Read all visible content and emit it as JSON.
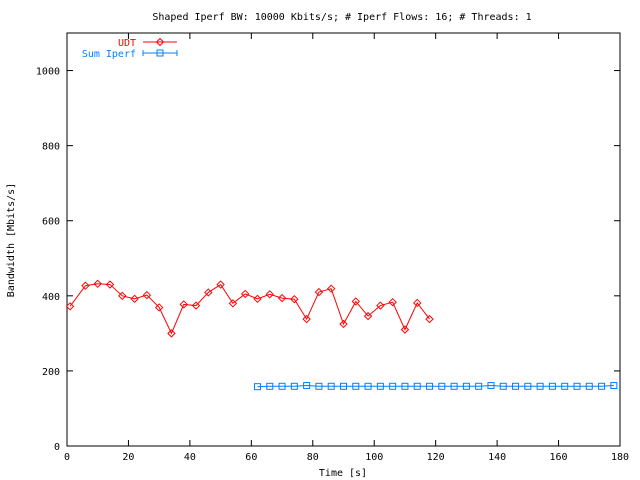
{
  "chart_data": {
    "type": "line",
    "title": "Shaped Iperf BW: 10000 Kbits/s; # Iperf Flows: 16; # Threads: 1",
    "xlabel": "Time [s]",
    "ylabel": "Bandwidth [Mbits/s]",
    "xlim": [
      0,
      180
    ],
    "ylim": [
      0,
      1100
    ],
    "xticks": [
      0,
      20,
      40,
      60,
      80,
      100,
      120,
      140,
      160,
      180
    ],
    "yticks": [
      0,
      200,
      400,
      600,
      800,
      1000
    ],
    "grid": false,
    "legend_position": "top-left",
    "series": [
      {
        "name": "UDT",
        "color": "#ff0000",
        "marker": "diamond",
        "x": [
          1,
          6,
          10,
          14,
          18,
          22,
          26,
          30,
          34,
          38,
          42,
          46,
          50,
          54,
          58,
          62,
          66,
          70,
          74,
          78,
          82,
          86,
          90,
          94,
          98,
          102,
          106,
          110,
          114,
          118
        ],
        "y": [
          372,
          427,
          432,
          430,
          400,
          392,
          402,
          369,
          300,
          377,
          374,
          409,
          430,
          380,
          405,
          392,
          404,
          394,
          391,
          338,
          410,
          419,
          325,
          385,
          346,
          374,
          383,
          310,
          381,
          338
        ]
      },
      {
        "name": "Sum Iperf",
        "color": "#0080ff",
        "marker": "square",
        "x": [
          62,
          66,
          70,
          74,
          78,
          82,
          86,
          90,
          94,
          98,
          102,
          106,
          110,
          114,
          118,
          122,
          126,
          130,
          134,
          138,
          142,
          146,
          150,
          154,
          158,
          162,
          166,
          170,
          174,
          178
        ],
        "y": [
          158,
          159,
          159,
          159,
          161,
          159,
          159,
          159,
          159,
          159,
          159,
          159,
          159,
          159,
          159,
          159,
          159,
          159,
          159,
          161,
          159,
          159,
          159,
          159,
          159,
          159,
          159,
          159,
          159,
          161
        ]
      }
    ]
  }
}
